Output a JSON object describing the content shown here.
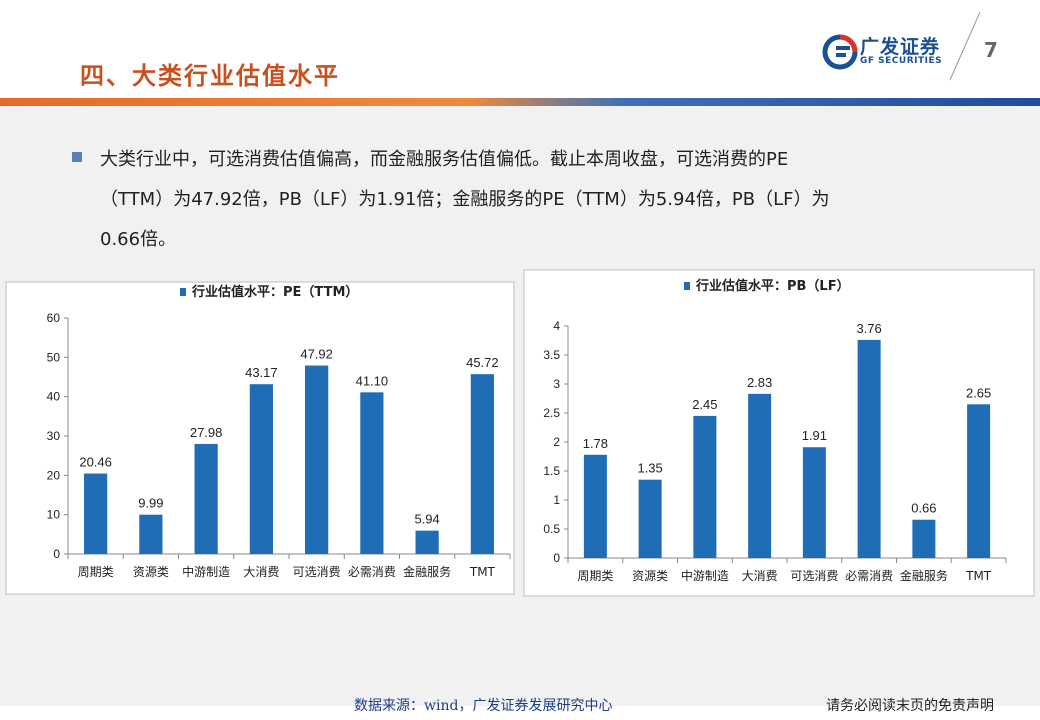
{
  "header": {
    "title": "四、大类行业估值水平",
    "page_number": "7",
    "logo_cn": "广发证券",
    "logo_en": "GF SECURITIES"
  },
  "body": {
    "lines": [
      "大类行业中，可选消费估值偏高，而金融服务估值偏低。截止本周收盘，可选消费的PE",
      "（TTM）为47.92倍，PB（LF）为1.91倍；金融服务的PE（TTM）为5.94倍，PB（LF）为",
      "0.66倍。"
    ]
  },
  "footer": {
    "source": "数据来源：wind，广发证券发展研究中心",
    "disclaimer": "请务必阅读末页的免责声明"
  },
  "colors": {
    "bar": "#1f6eb5",
    "title": "#c8501e",
    "brand": "#1a4f95"
  },
  "chart_data": [
    {
      "type": "bar",
      "legend": "行业估值水平：PE（TTM）",
      "categories": [
        "周期类",
        "资源类",
        "中游制造",
        "大消费",
        "可选消费",
        "必需消费",
        "金融服务",
        "TMT"
      ],
      "values": [
        20.46,
        9.99,
        27.98,
        43.17,
        47.92,
        41.1,
        5.94,
        45.72
      ],
      "labels": [
        "20.46",
        "9.99",
        "27.98",
        "43.17",
        "47.92",
        "41.10",
        "5.94",
        "45.72"
      ],
      "ylim": [
        0,
        60
      ],
      "yticks": [
        "0",
        "10",
        "20",
        "30",
        "40",
        "50",
        "60"
      ],
      "legend_position": "top"
    },
    {
      "type": "bar",
      "legend": "行业估值水平：PB（LF）",
      "categories": [
        "周期类",
        "资源类",
        "中游制造",
        "大消费",
        "可选消费",
        "必需消费",
        "金融服务",
        "TMT"
      ],
      "values": [
        1.78,
        1.35,
        2.45,
        2.83,
        1.91,
        3.76,
        0.66,
        2.65
      ],
      "labels": [
        "1.78",
        "1.35",
        "2.45",
        "2.83",
        "1.91",
        "3.76",
        "0.66",
        "2.65"
      ],
      "ylim": [
        0,
        4
      ],
      "yticks": [
        "0",
        "0.5",
        "1",
        "1.5",
        "2",
        "2.5",
        "3",
        "3.5",
        "4"
      ],
      "legend_position": "top"
    }
  ]
}
